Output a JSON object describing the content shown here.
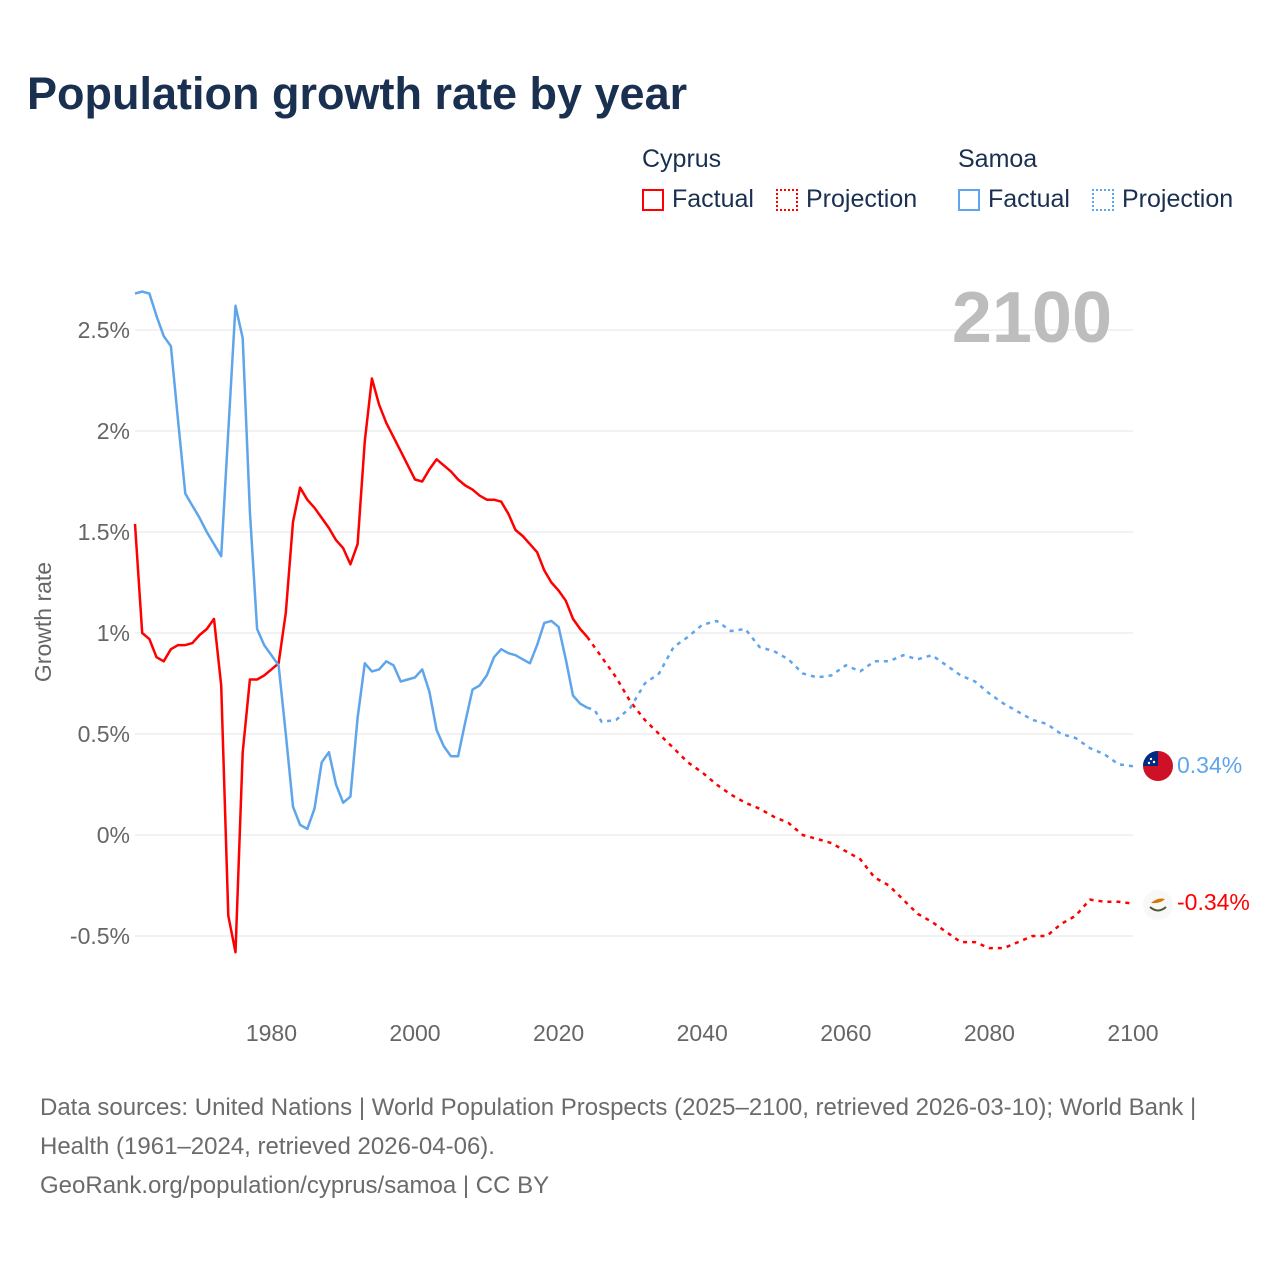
{
  "title": "Population growth rate by year",
  "legend": {
    "groups": [
      {
        "name": "Cyprus",
        "factual": "Factual",
        "projection": "Projection",
        "color": "#ff0000"
      },
      {
        "name": "Samoa",
        "factual": "Factual",
        "projection": "Projection",
        "color": "#5ea5ec"
      }
    ]
  },
  "year_label": "2100",
  "end_labels": {
    "samoa": "0.34%",
    "cyprus": "-0.34%"
  },
  "flags": {
    "samoa": "samoa-flag-icon",
    "cyprus": "cyprus-flag-icon"
  },
  "sources": {
    "line1": "Data sources: United Nations | World Population Prospects (2025–2100, retrieved 2026-03-10); World Bank | Health (1961–2024, retrieved 2026-04-06).",
    "line2": "GeoRank.org/population/cyprus/samoa | CC BY"
  },
  "chart_data": {
    "type": "line",
    "title": "Population growth rate by year",
    "xlabel": "",
    "ylabel": "Growth rate",
    "xlim": [
      1961,
      2100
    ],
    "ylim": [
      -0.7,
      2.75
    ],
    "yticks": [
      -0.5,
      0,
      0.5,
      1,
      1.5,
      2,
      2.5
    ],
    "ytick_labels": [
      "-0.5%",
      "0%",
      "0.5%",
      "1%",
      "1.5%",
      "2%",
      "2.5%"
    ],
    "xticks": [
      1980,
      2000,
      2020,
      2040,
      2060,
      2080,
      2100
    ],
    "xtick_labels": [
      "1980",
      "2000",
      "2020",
      "2040",
      "2060",
      "2080",
      "2100"
    ],
    "grid": true,
    "legend_position": "top-right",
    "series": [
      {
        "name": "Cyprus Factual",
        "color": "#ff0000",
        "dashed": false,
        "x": [
          1961,
          1962,
          1963,
          1964,
          1965,
          1966,
          1967,
          1968,
          1969,
          1970,
          1971,
          1972,
          1973,
          1974,
          1975,
          1976,
          1977,
          1978,
          1979,
          1980,
          1981,
          1982,
          1983,
          1984,
          1985,
          1986,
          1987,
          1988,
          1989,
          1990,
          1991,
          1992,
          1993,
          1994,
          1995,
          1996,
          1997,
          1998,
          1999,
          2000,
          2001,
          2002,
          2003,
          2004,
          2005,
          2006,
          2007,
          2008,
          2009,
          2010,
          2011,
          2012,
          2013,
          2014,
          2015,
          2016,
          2017,
          2018,
          2019,
          2020,
          2021,
          2022,
          2023,
          2024
        ],
        "y": [
          1.54,
          1.0,
          0.97,
          0.88,
          0.86,
          0.92,
          0.94,
          0.94,
          0.95,
          0.99,
          1.02,
          1.07,
          0.74,
          -0.4,
          -0.58,
          0.41,
          0.77,
          0.77,
          0.79,
          0.82,
          0.85,
          1.1,
          1.55,
          1.72,
          1.66,
          1.62,
          1.57,
          1.52,
          1.46,
          1.42,
          1.34,
          1.44,
          1.95,
          2.26,
          2.13,
          2.04,
          1.97,
          1.9,
          1.83,
          1.76,
          1.75,
          1.81,
          1.86,
          1.83,
          1.8,
          1.76,
          1.73,
          1.71,
          1.68,
          1.66,
          1.66,
          1.65,
          1.59,
          1.51,
          1.48,
          1.44,
          1.4,
          1.31,
          1.25,
          1.21,
          1.16,
          1.07,
          1.02,
          0.98
        ]
      },
      {
        "name": "Cyprus Projection",
        "color": "#ff0000",
        "dashed": true,
        "x": [
          2024,
          2026,
          2028,
          2030,
          2032,
          2034,
          2036,
          2038,
          2040,
          2042,
          2044,
          2046,
          2048,
          2050,
          2052,
          2054,
          2056,
          2058,
          2060,
          2062,
          2064,
          2066,
          2068,
          2070,
          2072,
          2074,
          2076,
          2078,
          2080,
          2082,
          2084,
          2086,
          2088,
          2090,
          2092,
          2094,
          2096,
          2098,
          2100
        ],
        "y": [
          0.98,
          0.88,
          0.78,
          0.66,
          0.57,
          0.5,
          0.43,
          0.36,
          0.31,
          0.25,
          0.2,
          0.16,
          0.13,
          0.09,
          0.06,
          0.0,
          -0.02,
          -0.04,
          -0.08,
          -0.12,
          -0.21,
          -0.25,
          -0.32,
          -0.39,
          -0.43,
          -0.48,
          -0.53,
          -0.53,
          -0.56,
          -0.56,
          -0.53,
          -0.5,
          -0.5,
          -0.44,
          -0.4,
          -0.32,
          -0.33,
          -0.33,
          -0.34
        ]
      },
      {
        "name": "Samoa Factual",
        "color": "#5ea5ec",
        "dashed": false,
        "x": [
          1961,
          1962,
          1963,
          1964,
          1965,
          1966,
          1967,
          1968,
          1969,
          1970,
          1971,
          1972,
          1973,
          1974,
          1975,
          1976,
          1977,
          1978,
          1979,
          1980,
          1981,
          1982,
          1983,
          1984,
          1985,
          1986,
          1987,
          1988,
          1989,
          1990,
          1991,
          1992,
          1993,
          1994,
          1995,
          1996,
          1997,
          1998,
          1999,
          2000,
          2001,
          2002,
          2003,
          2004,
          2005,
          2006,
          2007,
          2008,
          2009,
          2010,
          2011,
          2012,
          2013,
          2014,
          2015,
          2016,
          2017,
          2018,
          2019,
          2020,
          2021,
          2022,
          2023,
          2024
        ],
        "y": [
          2.68,
          2.69,
          2.68,
          2.57,
          2.47,
          2.42,
          2.05,
          1.69,
          1.63,
          1.57,
          1.5,
          1.44,
          1.38,
          2.0,
          2.62,
          2.46,
          1.6,
          1.02,
          0.94,
          0.89,
          0.84,
          0.5,
          0.14,
          0.05,
          0.03,
          0.13,
          0.36,
          0.41,
          0.25,
          0.16,
          0.19,
          0.58,
          0.85,
          0.81,
          0.82,
          0.86,
          0.84,
          0.76,
          0.77,
          0.78,
          0.82,
          0.71,
          0.52,
          0.44,
          0.39,
          0.39,
          0.56,
          0.72,
          0.74,
          0.79,
          0.88,
          0.92,
          0.9,
          0.89,
          0.87,
          0.85,
          0.94,
          1.05,
          1.06,
          1.03,
          0.87,
          0.69,
          0.65,
          0.63
        ]
      },
      {
        "name": "Samoa Projection",
        "color": "#5ea5ec",
        "dashed": true,
        "x": [
          2024,
          2025,
          2026,
          2028,
          2030,
          2032,
          2034,
          2036,
          2038,
          2040,
          2042,
          2044,
          2046,
          2048,
          2050,
          2052,
          2054,
          2056,
          2058,
          2060,
          2062,
          2064,
          2066,
          2068,
          2070,
          2072,
          2074,
          2076,
          2078,
          2080,
          2082,
          2084,
          2086,
          2088,
          2090,
          2092,
          2094,
          2096,
          2098,
          2100
        ],
        "y": [
          0.63,
          0.62,
          0.56,
          0.57,
          0.63,
          0.75,
          0.8,
          0.93,
          0.98,
          1.04,
          1.06,
          1.01,
          1.02,
          0.93,
          0.91,
          0.87,
          0.8,
          0.78,
          0.79,
          0.84,
          0.81,
          0.86,
          0.86,
          0.89,
          0.87,
          0.89,
          0.84,
          0.79,
          0.76,
          0.7,
          0.65,
          0.61,
          0.57,
          0.55,
          0.5,
          0.48,
          0.43,
          0.4,
          0.35,
          0.34
        ]
      }
    ]
  }
}
